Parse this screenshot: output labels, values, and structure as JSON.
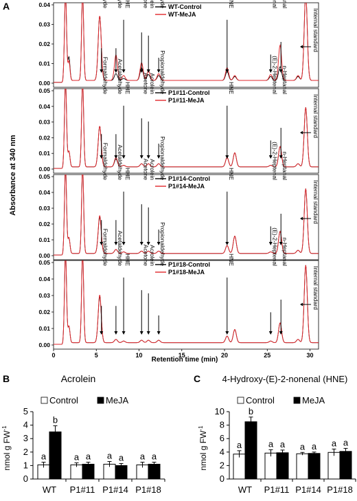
{
  "panel_a": {
    "letter": "A",
    "ylabel": "Absorbance at 340 nm",
    "xlabel": "Retention time (min)",
    "x_ticks": [
      "0",
      "5",
      "10",
      "15",
      "20",
      "25",
      "30"
    ],
    "chart_data": {
      "type": "line",
      "xlim": [
        0,
        31
      ],
      "colors": {
        "control": "#000000",
        "meja": "#e0262b"
      },
      "panels": [
        {
          "ylim": [
            0,
            0.04
          ],
          "y_ticks": [
            "0.00",
            "0.01",
            "0.02",
            "0.03",
            "0.04"
          ],
          "legend": [
            "WT-Control",
            "WT-MeJA"
          ],
          "peaks": {
            "control": [
              [
                1.4,
                0.045
              ],
              [
                1.8,
                0.012
              ],
              [
                3.4,
                0.045
              ],
              [
                5.4,
                0.033
              ],
              [
                7.3,
                0.0035
              ],
              [
                8.2,
                0.001
              ],
              [
                10.3,
                0.0065
              ],
              [
                11.1,
                0.003
              ],
              [
                12.3,
                0.0025
              ],
              [
                20.3,
                0.0045
              ],
              [
                21.2,
                0.002
              ],
              [
                25.4,
                0.002
              ],
              [
                26.5,
                0.007
              ],
              [
                28.6,
                0.002
              ],
              [
                29.5,
                0.044
              ]
            ],
            "meja": [
              [
                1.4,
                0.045
              ],
              [
                1.8,
                0.01
              ],
              [
                3.4,
                0.045
              ],
              [
                5.4,
                0.033
              ],
              [
                7.3,
                0.013
              ],
              [
                8.2,
                0.0025
              ],
              [
                10.3,
                0.009
              ],
              [
                11.1,
                0.005
              ],
              [
                12.3,
                0.0035
              ],
              [
                20.3,
                0.0065
              ],
              [
                21.2,
                0.0025
              ],
              [
                25.4,
                0.003
              ],
              [
                26.5,
                0.018
              ],
              [
                28.6,
                0.0025
              ],
              [
                29.5,
                0.044
              ]
            ]
          },
          "labels": [
            {
              "text": "Formaldehyde",
              "x": 5.6
            },
            {
              "text": "Acetaldehyde",
              "x": 7.3
            },
            {
              "text": "HHE",
              "x": 8.2
            },
            {
              "text": "Acetone",
              "x": 10.3
            },
            {
              "text": "Acrolein",
              "x": 11.1
            },
            {
              "text": "Propionaldehyde",
              "x": 12.3
            },
            {
              "text": "HNE",
              "x": 20.3
            },
            {
              "text": "(E)-2-Heptenal",
              "x": 25.4
            },
            {
              "text": "n-Heptanal",
              "x": 26.6
            },
            {
              "text": "Internal standard",
              "x": 29.8
            }
          ]
        },
        {
          "ylim": [
            0,
            0.05
          ],
          "y_ticks": [
            "0.00",
            "0.01",
            "0.02",
            "0.03",
            "0.04",
            "0.05"
          ],
          "legend": [
            "P1#11-Control",
            "P1#11-MeJA"
          ],
          "peaks": {
            "control": [
              [
                1.4,
                0.055
              ],
              [
                1.8,
                0.01
              ],
              [
                3.4,
                0.055
              ],
              [
                5.4,
                0.026
              ],
              [
                7.3,
                0.005
              ],
              [
                8.2,
                0.001
              ],
              [
                10.3,
                0.002
              ],
              [
                11.1,
                0.002
              ],
              [
                12.3,
                0.002
              ],
              [
                20.3,
                0.006
              ],
              [
                21.2,
                0.009
              ],
              [
                25.4,
                0.001
              ],
              [
                26.5,
                0.013
              ],
              [
                28.6,
                0.002
              ],
              [
                29.5,
                0.038
              ]
            ],
            "meja": [
              [
                1.4,
                0.055
              ],
              [
                1.8,
                0.01
              ],
              [
                3.4,
                0.055
              ],
              [
                5.4,
                0.026
              ],
              [
                7.3,
                0.006
              ],
              [
                8.2,
                0.001
              ],
              [
                10.3,
                0.002
              ],
              [
                11.1,
                0.002
              ],
              [
                12.3,
                0.002
              ],
              [
                20.3,
                0.006
              ],
              [
                21.2,
                0.009
              ],
              [
                25.4,
                0.001
              ],
              [
                26.5,
                0.013
              ],
              [
                28.6,
                0.002
              ],
              [
                29.5,
                0.038
              ]
            ]
          },
          "labels": [
            {
              "text": "Formaldehyde",
              "x": 5.6
            },
            {
              "text": "Acetaldehyde",
              "x": 7.3
            },
            {
              "text": "HHE",
              "x": 8.2
            },
            {
              "text": "Acetone",
              "x": 10.3
            },
            {
              "text": "Acrolein",
              "x": 11.1
            },
            {
              "text": "Propionaldehyde",
              "x": 12.3
            },
            {
              "text": "HNE",
              "x": 20.3
            },
            {
              "text": "(E)-2-Heptenal",
              "x": 25.4
            },
            {
              "text": "n-Heptanal",
              "x": 26.6
            },
            {
              "text": "Internal standard",
              "x": 29.8
            }
          ]
        },
        {
          "ylim": [
            0,
            0.05
          ],
          "y_ticks": [
            "0.00",
            "0.01",
            "0.02",
            "0.03",
            "0.04",
            "0.05"
          ],
          "legend": [
            "P1#14-Control",
            "P1#14-MeJA"
          ],
          "peaks": {
            "control": [
              [
                1.4,
                0.055
              ],
              [
                1.8,
                0.01
              ],
              [
                3.4,
                0.055
              ],
              [
                5.4,
                0.023
              ],
              [
                7.3,
                0.0025
              ],
              [
                8.2,
                0.001
              ],
              [
                10.3,
                0.0015
              ],
              [
                11.1,
                0.0015
              ],
              [
                12.3,
                0.0015
              ],
              [
                20.3,
                0.005
              ],
              [
                21.2,
                0.011
              ],
              [
                25.4,
                0.001
              ],
              [
                26.5,
                0.014
              ],
              [
                28.6,
                0.002
              ],
              [
                29.5,
                0.041
              ]
            ],
            "meja": [
              [
                1.4,
                0.055
              ],
              [
                1.8,
                0.01
              ],
              [
                3.4,
                0.055
              ],
              [
                5.4,
                0.024
              ],
              [
                7.3,
                0.0025
              ],
              [
                8.2,
                0.001
              ],
              [
                10.3,
                0.0015
              ],
              [
                11.1,
                0.0015
              ],
              [
                12.3,
                0.0015
              ],
              [
                20.3,
                0.005
              ],
              [
                21.2,
                0.011
              ],
              [
                25.4,
                0.001
              ],
              [
                26.5,
                0.014
              ],
              [
                28.6,
                0.002
              ],
              [
                29.5,
                0.041
              ]
            ]
          },
          "labels": [
            {
              "text": "Formaldehyde",
              "x": 5.6
            },
            {
              "text": "Acetaldehyde",
              "x": 7.3
            },
            {
              "text": "HHE",
              "x": 8.2
            },
            {
              "text": "Acetone",
              "x": 10.3
            },
            {
              "text": "Acrolein",
              "x": 11.1
            },
            {
              "text": "Propionaldehyde",
              "x": 12.3
            },
            {
              "text": "HNE",
              "x": 20.3
            },
            {
              "text": "(E)-2-Heptenal",
              "x": 25.4
            },
            {
              "text": "n-Heptanal",
              "x": 26.6
            },
            {
              "text": "Internal standard",
              "x": 29.8
            }
          ]
        },
        {
          "ylim": [
            0,
            0.05
          ],
          "y_ticks": [
            "0.00",
            "0.01",
            "0.02",
            "0.03",
            "0.04",
            "0.05"
          ],
          "legend": [
            "P1#18-Control",
            "P1#18-MeJA"
          ],
          "peaks": {
            "control": [
              [
                1.4,
                0.055
              ],
              [
                1.8,
                0.01
              ],
              [
                3.4,
                0.055
              ],
              [
                5.4,
                0.028
              ],
              [
                7.3,
                0.002
              ],
              [
                8.2,
                0.001
              ],
              [
                10.3,
                0.0015
              ],
              [
                11.1,
                0.0015
              ],
              [
                12.3,
                0.0015
              ],
              [
                20.3,
                0.004
              ],
              [
                21.2,
                0.008
              ],
              [
                25.4,
                0.001
              ],
              [
                26.5,
                0.012
              ],
              [
                28.6,
                0.002
              ],
              [
                29.5,
                0.047
              ]
            ],
            "meja": [
              [
                1.4,
                0.055
              ],
              [
                1.8,
                0.01
              ],
              [
                3.4,
                0.055
              ],
              [
                5.4,
                0.029
              ],
              [
                7.3,
                0.002
              ],
              [
                8.2,
                0.001
              ],
              [
                10.3,
                0.0015
              ],
              [
                11.1,
                0.0015
              ],
              [
                12.3,
                0.0015
              ],
              [
                20.3,
                0.004
              ],
              [
                21.2,
                0.008
              ],
              [
                25.4,
                0.001
              ],
              [
                26.5,
                0.012
              ],
              [
                28.6,
                0.002
              ],
              [
                29.5,
                0.047
              ]
            ]
          },
          "labels": [
            {
              "text": "Formaldehyde",
              "x": 5.6
            },
            {
              "text": "Acetaldehyde",
              "x": 7.3
            },
            {
              "text": "HHE",
              "x": 8.2
            },
            {
              "text": "Acetone",
              "x": 10.3
            },
            {
              "text": "Acrolein",
              "x": 11.1
            },
            {
              "text": "Propionaldehyde",
              "x": 12.3
            },
            {
              "text": "HNE",
              "x": 20.3
            },
            {
              "text": "(E)-2-Heptenal",
              "x": 25.4
            },
            {
              "text": "n-Heptanal",
              "x": 26.6
            },
            {
              "text": "Internal standard",
              "x": 29.8
            }
          ]
        }
      ]
    }
  },
  "panel_b": {
    "letter": "B",
    "title": "Acrolein",
    "ylabel_main": "nmol g FW",
    "ylabel_sup": "-1",
    "legend": [
      "Control",
      "MeJA"
    ],
    "chart_data": {
      "type": "bar",
      "categories": [
        "WT",
        "P1#11",
        "P1#14",
        "P1#18"
      ],
      "series": [
        {
          "name": "Control",
          "values": [
            1.05,
            1.05,
            1.1,
            1.05
          ],
          "errors": [
            0.2,
            0.15,
            0.2,
            0.2
          ],
          "letters": [
            "a",
            "a",
            "a",
            "a"
          ]
        },
        {
          "name": "MeJA",
          "values": [
            3.5,
            1.1,
            1.0,
            1.1
          ],
          "errors": [
            0.45,
            0.15,
            0.15,
            0.15
          ],
          "letters": [
            "b",
            "a",
            "a",
            "a"
          ]
        }
      ],
      "ylim": [
        0,
        5
      ],
      "y_ticks": [
        "0",
        "1",
        "2",
        "3",
        "4",
        "5"
      ]
    }
  },
  "panel_c": {
    "letter": "C",
    "title": "4-Hydroxy-(E)-2-nonenal (HNE)",
    "ylabel_main": "nmol g FW",
    "ylabel_sup": "-1",
    "legend": [
      "Control",
      "MeJA"
    ],
    "chart_data": {
      "type": "bar",
      "categories": [
        "WT",
        "P1#11",
        "P1#14",
        "P1#18"
      ],
      "series": [
        {
          "name": "Control",
          "values": [
            3.7,
            3.85,
            3.75,
            3.95
          ],
          "errors": [
            0.5,
            0.5,
            0.2,
            0.5
          ],
          "letters": [
            "a",
            "a",
            "a",
            "a"
          ]
        },
        {
          "name": "MeJA",
          "values": [
            8.5,
            3.9,
            3.8,
            4.1
          ],
          "errors": [
            0.7,
            0.4,
            0.2,
            0.45
          ],
          "letters": [
            "b",
            "a",
            "a",
            "a"
          ]
        }
      ],
      "ylim": [
        0,
        10
      ],
      "y_ticks": [
        "0",
        "2",
        "4",
        "6",
        "8",
        "10"
      ]
    }
  }
}
